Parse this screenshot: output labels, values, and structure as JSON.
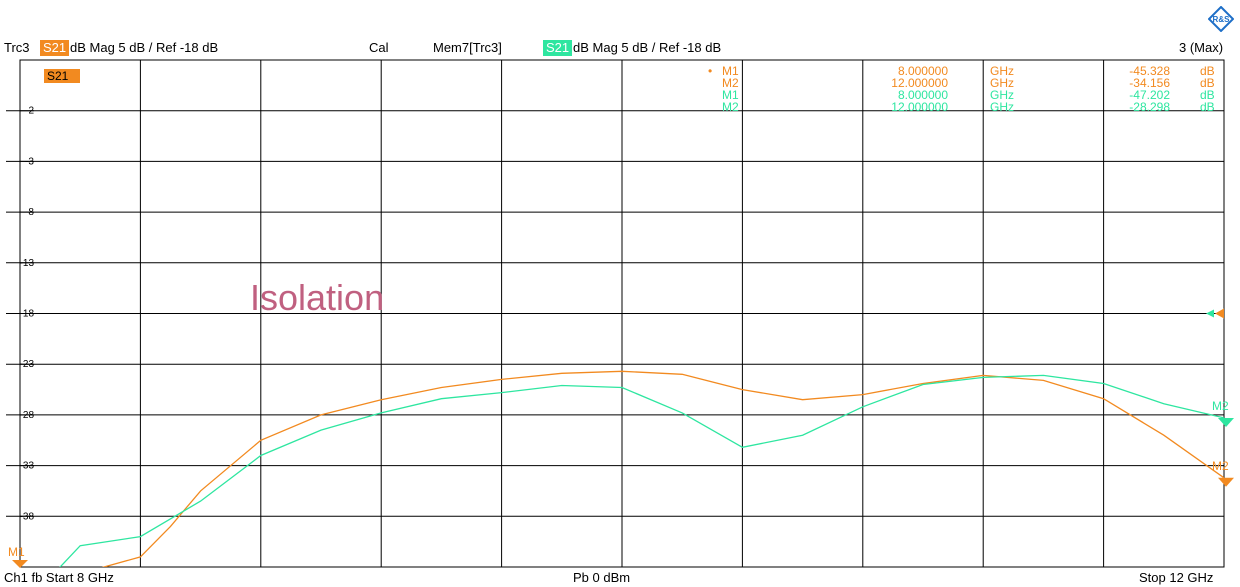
{
  "header": {
    "trc_label": "Trc3",
    "trc_param": "S21",
    "trc_format": "dB Mag  5 dB /  Ref -18 dB",
    "cal_label": "Cal",
    "mem_label": "Mem7[Trc3]",
    "mem_param": "S21",
    "mem_format": "dB Mag  5 dB /  Ref -18 dB",
    "max_label": "3 (Max)"
  },
  "footer": {
    "channel": "Ch1  fb  Start  8 GHz",
    "power": "Pb   0 dBm",
    "stop": "Stop  12 GHz"
  },
  "colors": {
    "trace": "#f28a20",
    "memory": "#2ee6a0",
    "annotation": "#c06080"
  },
  "marker_table": [
    {
      "bullet": "•",
      "name": "M1",
      "freq": "8.000000",
      "unit": "GHz",
      "value": "-45.328",
      "vunit": "dB",
      "series": "trace"
    },
    {
      "bullet": "",
      "name": "M2",
      "freq": "12.000000",
      "unit": "GHz",
      "value": "-34.156",
      "vunit": "dB",
      "series": "trace"
    },
    {
      "bullet": "",
      "name": "M1",
      "freq": "8.000000",
      "unit": "GHz",
      "value": "-47.202",
      "vunit": "dB",
      "series": "memory"
    },
    {
      "bullet": "",
      "name": "M2",
      "freq": "12.000000",
      "unit": "GHz",
      "value": "-28.298",
      "vunit": "dB",
      "series": "memory"
    }
  ],
  "chart_data": {
    "type": "line",
    "title": "",
    "param_label": "S21",
    "annotation": "Isolation",
    "xlabel": "",
    "ylabel": "",
    "xlim": [
      8,
      12
    ],
    "ylim": [
      -43,
      7
    ],
    "x_divisions": 10,
    "y_ticks": [
      2,
      -3,
      -8,
      -13,
      -18,
      -23,
      -28,
      -33,
      -38
    ],
    "reference_level": -18,
    "grid": true,
    "series": [
      {
        "name": "Trc3",
        "color_key": "trace",
        "x": [
          8.0,
          8.4,
          8.5,
          8.6,
          8.8,
          9.0,
          9.2,
          9.4,
          9.6,
          9.8,
          10.0,
          10.2,
          10.4,
          10.6,
          10.8,
          11.0,
          11.2,
          11.4,
          11.6,
          11.8,
          12.0
        ],
        "y": [
          -45.3,
          -42.0,
          -39.0,
          -35.5,
          -30.5,
          -28.0,
          -26.5,
          -25.3,
          -24.5,
          -23.9,
          -23.7,
          -24.0,
          -25.5,
          -26.5,
          -26.0,
          -24.9,
          -24.1,
          -24.6,
          -26.4,
          -30.0,
          -34.2
        ]
      },
      {
        "name": "Mem7[Trc3]",
        "color_key": "memory",
        "x": [
          8.0,
          8.2,
          8.4,
          8.6,
          8.8,
          9.0,
          9.2,
          9.4,
          9.6,
          9.8,
          10.0,
          10.2,
          10.4,
          10.6,
          10.8,
          11.0,
          11.2,
          11.4,
          11.6,
          11.8,
          12.0
        ],
        "y": [
          -47.2,
          -40.9,
          -40.0,
          -36.5,
          -32.0,
          -29.5,
          -27.8,
          -26.4,
          -25.8,
          -25.1,
          -25.3,
          -27.8,
          -31.2,
          -30.0,
          -27.2,
          -25.0,
          -24.3,
          -24.1,
          -24.9,
          -26.9,
          -28.3
        ]
      }
    ]
  }
}
